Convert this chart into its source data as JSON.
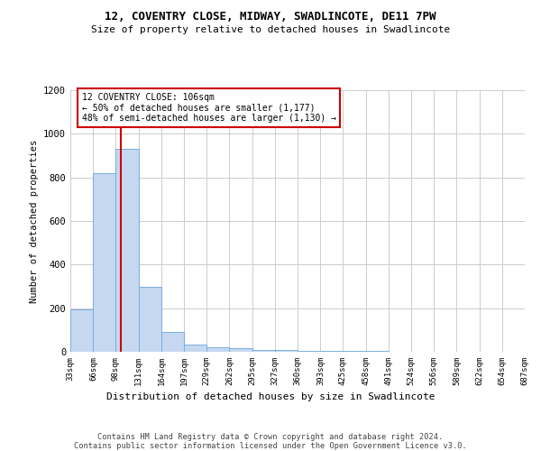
{
  "title_line1": "12, COVENTRY CLOSE, MIDWAY, SWADLINCOTE, DE11 7PW",
  "title_line2": "Size of property relative to detached houses in Swadlincote",
  "xlabel": "Distribution of detached houses by size in Swadlincote",
  "ylabel": "Number of detached properties",
  "bin_edges": [
    33,
    66,
    98,
    131,
    164,
    197,
    229,
    262,
    295,
    327,
    360,
    393,
    425,
    458,
    491,
    524,
    556,
    589,
    622,
    654,
    687
  ],
  "bar_heights": [
    195,
    820,
    930,
    300,
    90,
    35,
    20,
    15,
    10,
    8,
    5,
    4,
    3,
    3,
    2,
    2,
    1,
    1,
    1,
    1
  ],
  "bar_color": "#c5d8f0",
  "bar_edgecolor": "#7aade0",
  "vline_x": 106,
  "vline_color": "#cc0000",
  "annotation_text": "12 COVENTRY CLOSE: 106sqm\n← 50% of detached houses are smaller (1,177)\n48% of semi-detached houses are larger (1,130) →",
  "annotation_box_color": "#ffffff",
  "annotation_border_color": "#cc0000",
  "footer_line1": "Contains HM Land Registry data © Crown copyright and database right 2024.",
  "footer_line2": "Contains public sector information licensed under the Open Government Licence v3.0.",
  "ylim": [
    0,
    1200
  ],
  "background_color": "#ffffff",
  "grid_color": "#cccccc"
}
